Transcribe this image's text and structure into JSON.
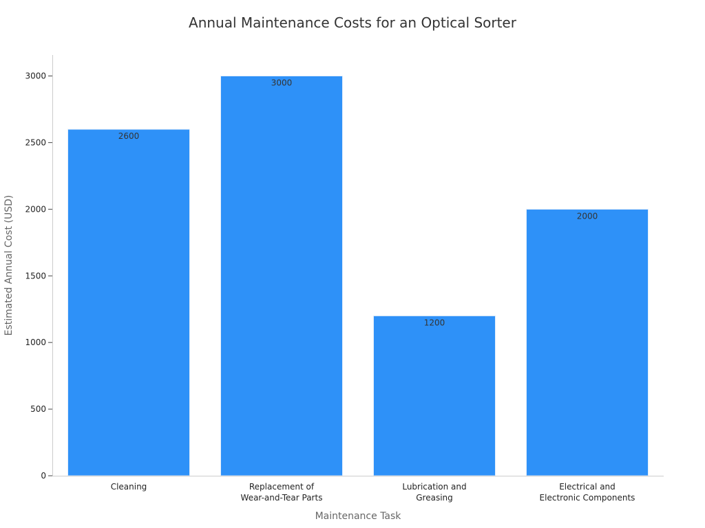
{
  "chart_data": {
    "type": "bar",
    "title": "Annual Maintenance Costs for an Optical Sorter",
    "xlabel": "Maintenance Task",
    "ylabel": "Estimated Annual Cost (USD)",
    "categories": [
      [
        "Cleaning"
      ],
      [
        "Replacement of",
        "Wear-and-Tear Parts"
      ],
      [
        "Lubrication and",
        "Greasing"
      ],
      [
        "Electrical and",
        "Electronic Components"
      ]
    ],
    "values": [
      2600,
      3000,
      1200,
      2000
    ],
    "data_labels": [
      "2600",
      "3000",
      "1200",
      "2000"
    ],
    "ylim": [
      0,
      3150
    ],
    "yticks": [
      0,
      500,
      1000,
      1500,
      2000,
      2500,
      3000
    ],
    "ytick_labels": [
      "0",
      "500",
      "1000",
      "1500",
      "2000",
      "2500",
      "3000"
    ],
    "grid": false,
    "legend": "none",
    "colors": {
      "bar": "#2e91f8",
      "bar_edge": "#e3eefb",
      "axis": "#cccccc"
    }
  }
}
